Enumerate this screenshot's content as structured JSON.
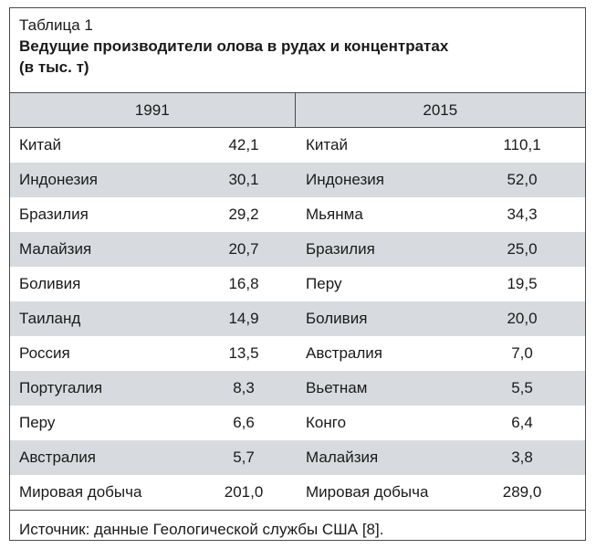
{
  "caption": {
    "label": "Таблица 1",
    "title_line1": "Ведущие производители олова в рудах и концентратах",
    "title_line2": "(в тыс. т)"
  },
  "headers": {
    "year_left": "1991",
    "year_right": "2015"
  },
  "rows": [
    {
      "c1991": "Китай",
      "v1991": "42,1",
      "c2015": "Китай",
      "v2015": "110,1"
    },
    {
      "c1991": "Индонезия",
      "v1991": "30,1",
      "c2015": "Индонезия",
      "v2015": "52,0"
    },
    {
      "c1991": "Бразилия",
      "v1991": "29,2",
      "c2015": "Мьянма",
      "v2015": "34,3"
    },
    {
      "c1991": "Малайзия",
      "v1991": "20,7",
      "c2015": "Бразилия",
      "v2015": "25,0"
    },
    {
      "c1991": "Боливия",
      "v1991": "16,8",
      "c2015": "Перу",
      "v2015": "19,5"
    },
    {
      "c1991": "Таиланд",
      "v1991": "14,9",
      "c2015": "Боливия",
      "v2015": "20,0"
    },
    {
      "c1991": "Россия",
      "v1991": "13,5",
      "c2015": "Австралия",
      "v2015": "7,0"
    },
    {
      "c1991": "Португалия",
      "v1991": "8,3",
      "c2015": "Вьетнам",
      "v2015": "5,5"
    },
    {
      "c1991": "Перу",
      "v1991": "6,6",
      "c2015": "Конго",
      "v2015": "6,4"
    },
    {
      "c1991": "Австралия",
      "v1991": "5,7",
      "c2015": "Малайзия",
      "v2015": "3,8"
    },
    {
      "c1991": "Мировая добыча",
      "v1991": "201,0",
      "c2015": "Мировая добыча",
      "v2015": "289,0"
    }
  ],
  "source": "Источник: данные Геологической службы США [8].",
  "colors": {
    "row_shade": "#d7dbdf",
    "border": "#4a4a4a"
  }
}
